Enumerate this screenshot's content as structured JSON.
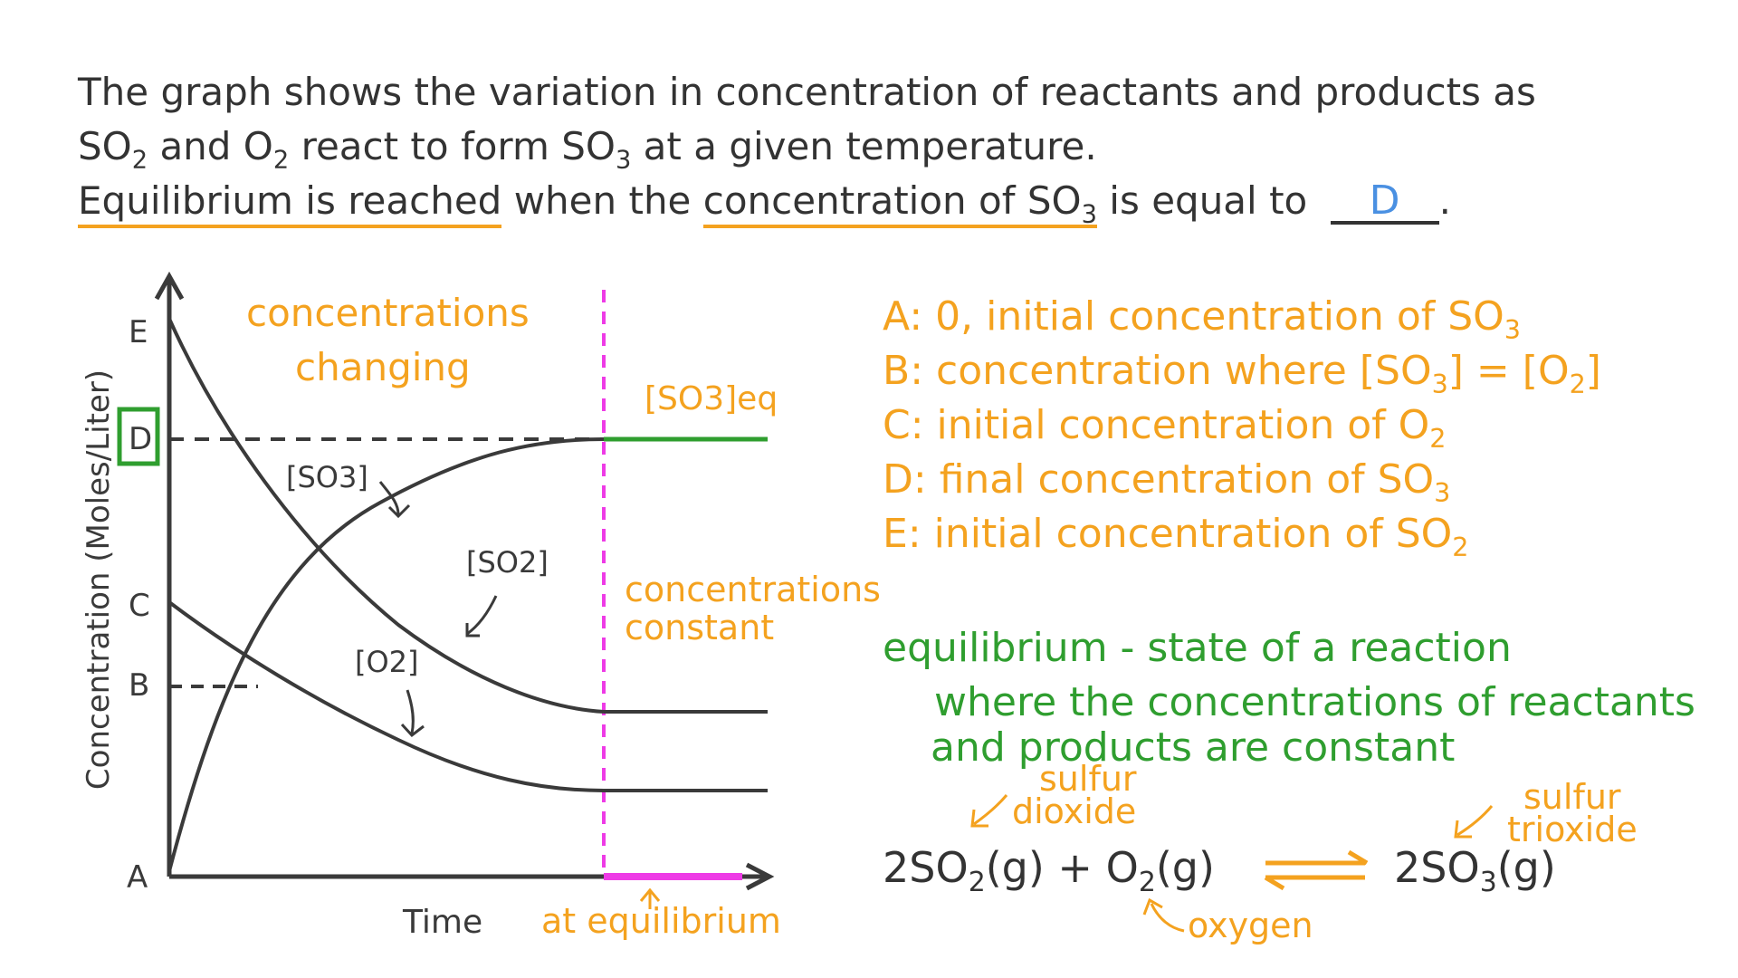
{
  "question": {
    "line1": "The graph shows the variation in concentration of reactants and products as",
    "line2_a": "SO",
    "line2_b": "2",
    "line2_c": " and O",
    "line2_d": "2",
    "line2_e": " react to form SO",
    "line2_f": "3",
    "line2_g": " at a given temperature.",
    "line3_underlined1": "Equilibrium is reached",
    "line3_mid": " when the ",
    "line3_underlined2_a": "concentration of SO",
    "line3_underlined2_b": "3",
    "line3_end": " is equal to ",
    "answer": "D",
    "period": "."
  },
  "graph": {
    "y_axis_label": "Concentration (Moles/Liter)",
    "x_axis_label": "Time",
    "ticks": [
      "E",
      "D",
      "C",
      "B",
      "A"
    ],
    "curve_labels": {
      "so3": "[SO3]",
      "so2": "[SO2]",
      "o2": "[O2]",
      "so3_eq": "[SO3]eq"
    },
    "region_changing": [
      "concentrations",
      "changing"
    ],
    "region_constant": [
      "concentrations",
      "constant"
    ],
    "at_equilibrium": "at equilibrium"
  },
  "legend": [
    {
      "letter": "A",
      "text": "0, initial concentration of SO",
      "sub": "3"
    },
    {
      "letter": "B",
      "text": "concentration where [SO",
      "sub": "3",
      "text2": "] = [O",
      "sub2": "2",
      "text3": "]"
    },
    {
      "letter": "C",
      "text": "initial concentration of O",
      "sub": "2"
    },
    {
      "letter": "D",
      "text": "final concentration of SO",
      "sub": "3"
    },
    {
      "letter": "E",
      "text": "initial concentration of SO",
      "sub": "2"
    }
  ],
  "definition": {
    "line1": "equilibrium - state of a reaction",
    "line2": "where the concentrations of reactants",
    "line3": "and products are constant"
  },
  "equation": {
    "left": "2SO",
    "left_sub": "2",
    "left_state": "(g) + O",
    "o2_sub": "2",
    "o2_state": "(g)",
    "right": "2SO",
    "right_sub": "3",
    "right_state": "(g)",
    "label_so2": [
      "sulfur",
      "dioxide"
    ],
    "label_so3": [
      "sulfur",
      "trioxide"
    ],
    "label_o2": "oxygen"
  },
  "colors": {
    "orange": "#f4a21f",
    "green": "#2f9e2f",
    "magenta": "#ee3be6",
    "ink": "#3a3a3a",
    "blue": "#4a90e2"
  }
}
